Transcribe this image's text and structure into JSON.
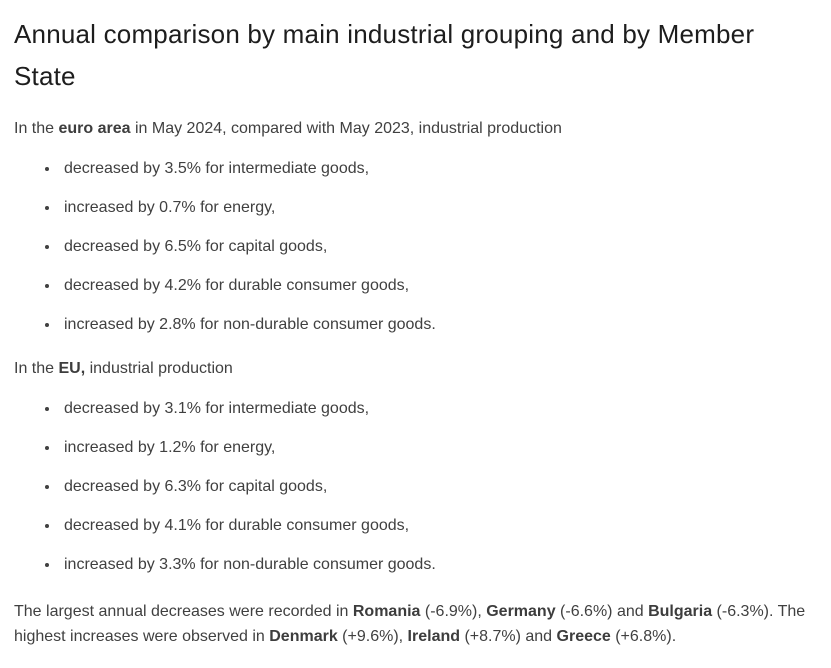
{
  "page_title": "Annual comparison by main industrial grouping and by Member State",
  "euro_area": {
    "intro": {
      "pre": "In the ",
      "bold": "euro area",
      "post": " in May 2024, compared with May 2023, industrial production"
    },
    "bullets": [
      "decreased by 3.5% for intermediate goods,",
      "increased by 0.7% for energy,",
      "decreased by 6.5% for capital goods,",
      "decreased by 4.2% for durable consumer goods,",
      "increased by 2.8% for non-durable consumer goods."
    ]
  },
  "eu": {
    "intro": {
      "pre": "In the ",
      "bold": "EU,",
      "post": " industrial production"
    },
    "bullets": [
      "decreased by 3.1% for intermediate goods,",
      "increased by 1.2% for energy,",
      "decreased by 6.3% for capital goods,",
      "decreased by 4.1% for durable consumer goods,",
      "increased by 3.3% for non-durable consumer goods."
    ]
  },
  "summary": {
    "segments": [
      {
        "text": "The largest annual decreases were recorded in ",
        "bold": false
      },
      {
        "text": "Romania",
        "bold": true
      },
      {
        "text": " (-6.9%), ",
        "bold": false
      },
      {
        "text": "Germany",
        "bold": true
      },
      {
        "text": " (-6.6%) and ",
        "bold": false
      },
      {
        "text": "Bulgaria",
        "bold": true
      },
      {
        "text": " (-6.3%). The highest increases were observed in ",
        "bold": false
      },
      {
        "text": "Denmark",
        "bold": true
      },
      {
        "text": " (+9.6%), ",
        "bold": false
      },
      {
        "text": "Ireland",
        "bold": true
      },
      {
        "text": " (+8.7%) and ",
        "bold": false
      },
      {
        "text": "Greece",
        "bold": true
      },
      {
        "text": " (+6.8%).",
        "bold": false
      }
    ]
  }
}
